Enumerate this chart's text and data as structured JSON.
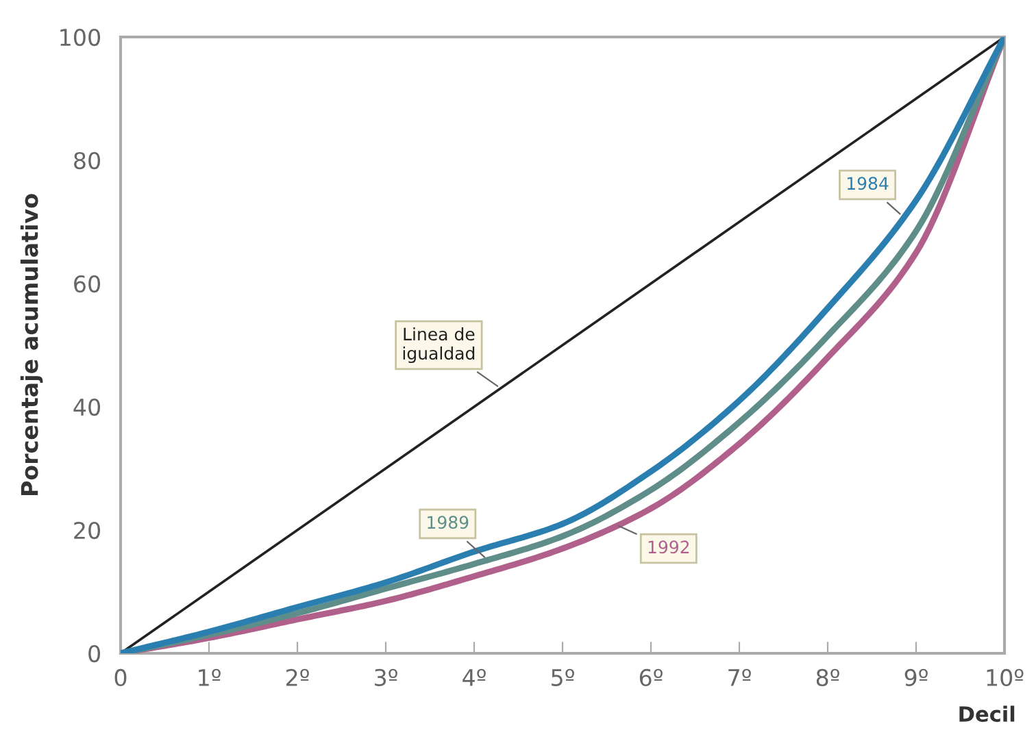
{
  "chart_data": {
    "type": "line",
    "xlabel": "Decil",
    "ylabel": "Porcentaje acumulativo",
    "x": [
      0,
      1,
      2,
      3,
      4,
      5,
      6,
      7,
      8,
      9,
      10
    ],
    "series": [
      {
        "name": "Linea de\nigualdad",
        "color": "#222222",
        "values": [
          0,
          10,
          20,
          30,
          40,
          50,
          60,
          70,
          80,
          90,
          100
        ]
      },
      {
        "name": "1984",
        "color": "#2a7fb0",
        "values": [
          0,
          3.5,
          7.5,
          11.5,
          16.5,
          21,
          29.5,
          41,
          56,
          73.5,
          100
        ]
      },
      {
        "name": "1989",
        "color": "#5f8e8a",
        "values": [
          0,
          3,
          6.5,
          10.5,
          14.5,
          19,
          26.5,
          37.5,
          51.5,
          68.5,
          100
        ]
      },
      {
        "name": "1992",
        "color": "#b0608a",
        "values": [
          0,
          2.5,
          5.5,
          8.5,
          12.5,
          17,
          23.5,
          34,
          48,
          65,
          100
        ]
      }
    ],
    "xlim": [
      0,
      10
    ],
    "ylim": [
      0,
      100
    ],
    "xticks": [
      0,
      {
        "value": 1,
        "label": "1º"
      },
      {
        "value": 2,
        "label": "2º"
      },
      {
        "value": 3,
        "label": "3º"
      },
      {
        "value": 4,
        "label": "4º"
      },
      {
        "value": 5,
        "label": "5º"
      },
      {
        "value": 6,
        "label": "6º"
      },
      {
        "value": 7,
        "label": "7º"
      },
      {
        "value": 8,
        "label": "8º"
      },
      {
        "value": 9,
        "label": "9º"
      },
      {
        "value": 10,
        "label": "10º"
      }
    ],
    "yticks": [
      0,
      20,
      40,
      60,
      80,
      100
    ],
    "grid": false,
    "legend": false,
    "marker": "none",
    "line_style": "solid"
  }
}
